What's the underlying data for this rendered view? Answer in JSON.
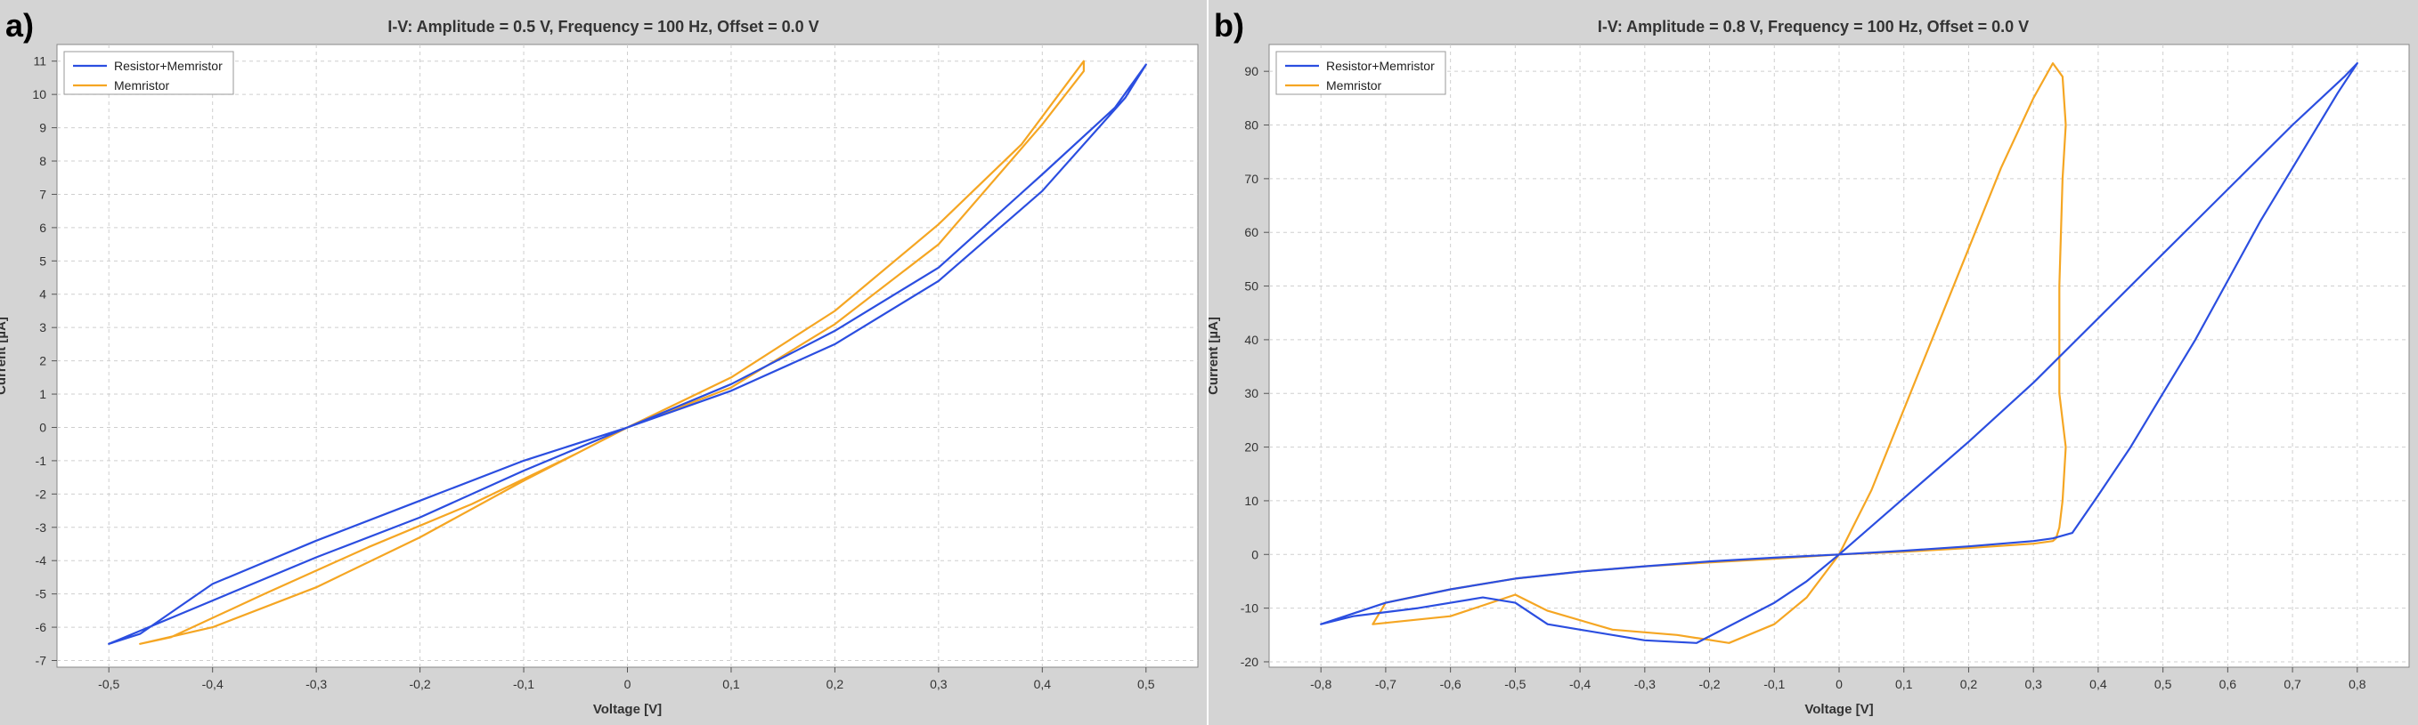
{
  "chart_data": [
    {
      "panel_label": "a)",
      "type": "line",
      "title": "I-V: Amplitude = 0.5 V, Frequency = 100 Hz, Offset = 0.0 V",
      "xlabel": "Voltage [V]",
      "ylabel": "Current [µA]",
      "xlim": [
        -0.55,
        0.55
      ],
      "ylim": [
        -7.2,
        11.5
      ],
      "xticks": [
        -0.5,
        -0.4,
        -0.3,
        -0.2,
        -0.1,
        0,
        0.1,
        0.2,
        0.3,
        0.4,
        0.5
      ],
      "xtick_labels": [
        "-0,5",
        "-0,4",
        "-0,3",
        "-0,2",
        "-0,1",
        "0",
        "0,1",
        "0,2",
        "0,3",
        "0,4",
        "0,5"
      ],
      "yticks": [
        -7,
        -6,
        -5,
        -4,
        -3,
        -2,
        -1,
        0,
        1,
        2,
        3,
        4,
        5,
        6,
        7,
        8,
        9,
        10,
        11
      ],
      "ytick_labels": [
        "-7",
        "-6",
        "-5",
        "-4",
        "-3",
        "-2",
        "-1",
        "0",
        "1",
        "2",
        "3",
        "4",
        "5",
        "6",
        "7",
        "8",
        "9",
        "10",
        "11"
      ],
      "grid": true,
      "legend_position": "top-left",
      "series": [
        {
          "name": "Resistor+Memristor",
          "color": "#2b4ee0",
          "x": [
            0,
            0.1,
            0.2,
            0.3,
            0.4,
            0.47,
            0.5,
            0.48,
            0.4,
            0.3,
            0.2,
            0.1,
            0,
            -0.1,
            -0.2,
            -0.3,
            -0.4,
            -0.5,
            -0.47,
            -0.4,
            -0.3,
            -0.2,
            -0.1,
            0
          ],
          "y": [
            0,
            1.3,
            2.9,
            4.8,
            7.6,
            9.6,
            10.9,
            9.9,
            7.1,
            4.4,
            2.5,
            1.1,
            0,
            -1.3,
            -2.7,
            -3.9,
            -5.2,
            -6.5,
            -6.2,
            -4.7,
            -3.4,
            -2.2,
            -1.0,
            0
          ]
        },
        {
          "name": "Memristor",
          "color": "#f5a623",
          "x": [
            0,
            0.1,
            0.2,
            0.3,
            0.38,
            0.44,
            0.44,
            0.4,
            0.3,
            0.2,
            0.1,
            0,
            -0.1,
            -0.2,
            -0.3,
            -0.4,
            -0.47,
            -0.44,
            -0.35,
            -0.25,
            -0.15,
            -0.05,
            0
          ],
          "y": [
            0,
            1.5,
            3.5,
            6.1,
            8.5,
            11,
            10.7,
            9.1,
            5.5,
            3.1,
            1.2,
            0,
            -1.6,
            -3.3,
            -4.8,
            -6.0,
            -6.5,
            -6.3,
            -5.0,
            -3.6,
            -2.3,
            -0.8,
            0
          ]
        }
      ]
    },
    {
      "panel_label": "b)",
      "type": "line",
      "title": "I-V: Amplitude = 0.8 V, Frequency = 100 Hz, Offset = 0.0 V",
      "xlabel": "Voltage [V]",
      "ylabel": "Current [µA]",
      "xlim": [
        -0.88,
        0.88
      ],
      "ylim": [
        -21,
        95
      ],
      "xticks": [
        -0.8,
        -0.7,
        -0.6,
        -0.5,
        -0.4,
        -0.3,
        -0.2,
        -0.1,
        0,
        0.1,
        0.2,
        0.3,
        0.4,
        0.5,
        0.6,
        0.7,
        0.8
      ],
      "xtick_labels": [
        "-0,8",
        "-0,7",
        "-0,6",
        "-0,5",
        "-0,4",
        "-0,3",
        "-0,2",
        "-0,1",
        "0",
        "0,1",
        "0,2",
        "0,3",
        "0,4",
        "0,5",
        "0,6",
        "0,7",
        "0,8"
      ],
      "yticks": [
        -20,
        -10,
        0,
        10,
        20,
        30,
        40,
        50,
        60,
        70,
        80,
        90
      ],
      "ytick_labels": [
        "-20",
        "-10",
        "0",
        "10",
        "20",
        "30",
        "40",
        "50",
        "60",
        "70",
        "80",
        "90"
      ],
      "grid": true,
      "legend_position": "top-left",
      "series": [
        {
          "name": "Resistor+Memristor",
          "color": "#2b4ee0",
          "x": [
            0,
            0.1,
            0.2,
            0.3,
            0.4,
            0.5,
            0.6,
            0.7,
            0.78,
            0.8,
            0.77,
            0.7,
            0.65,
            0.6,
            0.55,
            0.5,
            0.45,
            0.4,
            0.36,
            0.33,
            0.3,
            0.2,
            0.1,
            0,
            -0.1,
            -0.2,
            -0.3,
            -0.4,
            -0.5,
            -0.6,
            -0.7,
            -0.8,
            -0.75,
            -0.65,
            -0.55,
            -0.5,
            -0.45,
            -0.4,
            -0.3,
            -0.22,
            -0.1,
            -0.05,
            0
          ],
          "y": [
            0,
            10.5,
            21,
            32,
            44,
            56,
            68,
            80,
            89,
            91.5,
            86,
            72,
            62,
            51,
            40,
            30,
            20,
            11,
            4,
            3,
            2.5,
            1.5,
            0.7,
            0,
            -0.6,
            -1.3,
            -2.2,
            -3.2,
            -4.5,
            -6.5,
            -9,
            -13,
            -11.5,
            -10,
            -8,
            -9,
            -13,
            -14,
            -16,
            -16.5,
            -9,
            -5,
            0
          ]
        },
        {
          "name": "Memristor",
          "color": "#f5a623",
          "x": [
            0,
            0.05,
            0.1,
            0.15,
            0.2,
            0.25,
            0.3,
            0.33,
            0.345,
            0.35,
            0.345,
            0.34,
            0.34,
            0.35,
            0.345,
            0.34,
            0.335,
            0.33,
            0.3,
            0.2,
            0.1,
            0,
            -0.1,
            -0.2,
            -0.3,
            -0.4,
            -0.5,
            -0.6,
            -0.7,
            -0.72,
            -0.6,
            -0.5,
            -0.45,
            -0.35,
            -0.25,
            -0.17,
            -0.1,
            -0.05,
            0
          ],
          "y": [
            0,
            12,
            27,
            42,
            57,
            72,
            85,
            91.5,
            89,
            80,
            70,
            50,
            30,
            20,
            10,
            5,
            3,
            2.5,
            2,
            1.2,
            0.5,
            0,
            -0.8,
            -1.5,
            -2.2,
            -3.2,
            -4.5,
            -6.5,
            -9,
            -13,
            -11.5,
            -7.5,
            -10.5,
            -14,
            -15,
            -16.5,
            -13,
            -8,
            0
          ]
        }
      ]
    }
  ]
}
